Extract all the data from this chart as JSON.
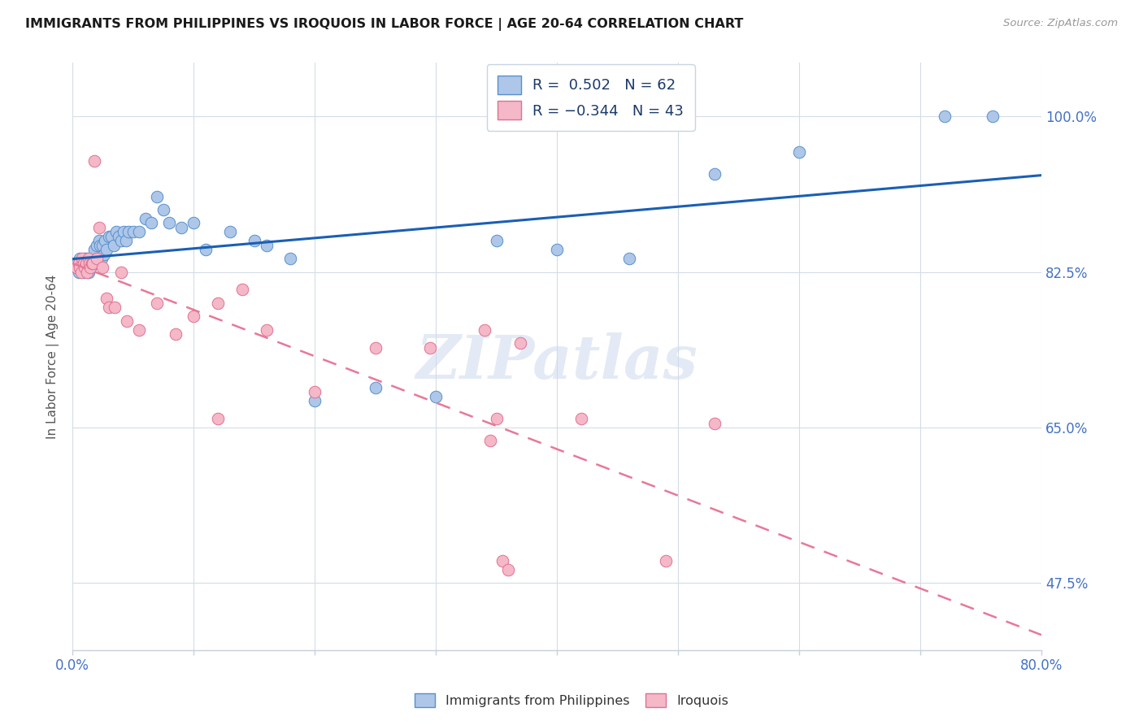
{
  "title": "IMMIGRANTS FROM PHILIPPINES VS IROQUOIS IN LABOR FORCE | AGE 20-64 CORRELATION CHART",
  "source": "Source: ZipAtlas.com",
  "ylabel": "In Labor Force | Age 20-64",
  "xlim": [
    0.0,
    0.8
  ],
  "ylim": [
    0.4,
    1.06
  ],
  "ytick_positions": [
    0.475,
    0.65,
    0.825,
    1.0
  ],
  "ytick_labels": [
    "47.5%",
    "65.0%",
    "82.5%",
    "100.0%"
  ],
  "blue_r": 0.502,
  "blue_n": 62,
  "pink_r": -0.344,
  "pink_n": 43,
  "blue_color": "#aec6e8",
  "pink_color": "#f4b8c8",
  "blue_edge_color": "#5590cc",
  "pink_edge_color": "#e07090",
  "blue_line_color": "#1a5fb4",
  "pink_line_color": "#e87898",
  "watermark": "ZIPatlas",
  "blue_scatter_x": [
    0.003,
    0.004,
    0.005,
    0.006,
    0.007,
    0.008,
    0.009,
    0.01,
    0.01,
    0.011,
    0.012,
    0.012,
    0.013,
    0.014,
    0.015,
    0.015,
    0.016,
    0.017,
    0.018,
    0.019,
    0.02,
    0.021,
    0.022,
    0.023,
    0.024,
    0.025,
    0.026,
    0.027,
    0.028,
    0.03,
    0.032,
    0.034,
    0.036,
    0.038,
    0.04,
    0.042,
    0.044,
    0.046,
    0.05,
    0.055,
    0.06,
    0.065,
    0.07,
    0.075,
    0.08,
    0.09,
    0.1,
    0.11,
    0.13,
    0.15,
    0.16,
    0.18,
    0.2,
    0.25,
    0.3,
    0.35,
    0.4,
    0.46,
    0.53,
    0.6,
    0.72,
    0.76
  ],
  "blue_scatter_y": [
    0.83,
    0.835,
    0.825,
    0.84,
    0.83,
    0.83,
    0.835,
    0.825,
    0.84,
    0.83,
    0.83,
    0.84,
    0.825,
    0.835,
    0.83,
    0.84,
    0.835,
    0.84,
    0.85,
    0.835,
    0.855,
    0.84,
    0.86,
    0.855,
    0.84,
    0.855,
    0.845,
    0.86,
    0.85,
    0.865,
    0.865,
    0.855,
    0.87,
    0.865,
    0.86,
    0.87,
    0.86,
    0.87,
    0.87,
    0.87,
    0.885,
    0.88,
    0.91,
    0.895,
    0.88,
    0.875,
    0.88,
    0.85,
    0.87,
    0.86,
    0.855,
    0.84,
    0.68,
    0.695,
    0.685,
    0.86,
    0.85,
    0.84,
    0.935,
    0.96,
    1.0,
    1.0
  ],
  "pink_scatter_x": [
    0.003,
    0.005,
    0.006,
    0.007,
    0.008,
    0.009,
    0.01,
    0.011,
    0.012,
    0.013,
    0.014,
    0.015,
    0.016,
    0.017,
    0.018,
    0.02,
    0.022,
    0.025,
    0.028,
    0.03,
    0.035,
    0.04,
    0.045,
    0.055,
    0.07,
    0.085,
    0.1,
    0.12,
    0.14,
    0.16,
    0.2,
    0.25,
    0.295,
    0.34,
    0.37,
    0.42,
    0.49,
    0.53,
    0.345,
    0.35,
    0.355,
    0.36,
    0.12
  ],
  "pink_scatter_y": [
    0.83,
    0.835,
    0.83,
    0.825,
    0.84,
    0.835,
    0.83,
    0.835,
    0.825,
    0.84,
    0.835,
    0.83,
    0.835,
    0.835,
    0.95,
    0.84,
    0.875,
    0.83,
    0.795,
    0.785,
    0.785,
    0.825,
    0.77,
    0.76,
    0.79,
    0.755,
    0.775,
    0.79,
    0.805,
    0.76,
    0.69,
    0.74,
    0.74,
    0.76,
    0.745,
    0.66,
    0.5,
    0.655,
    0.635,
    0.66,
    0.5,
    0.49,
    0.66
  ]
}
